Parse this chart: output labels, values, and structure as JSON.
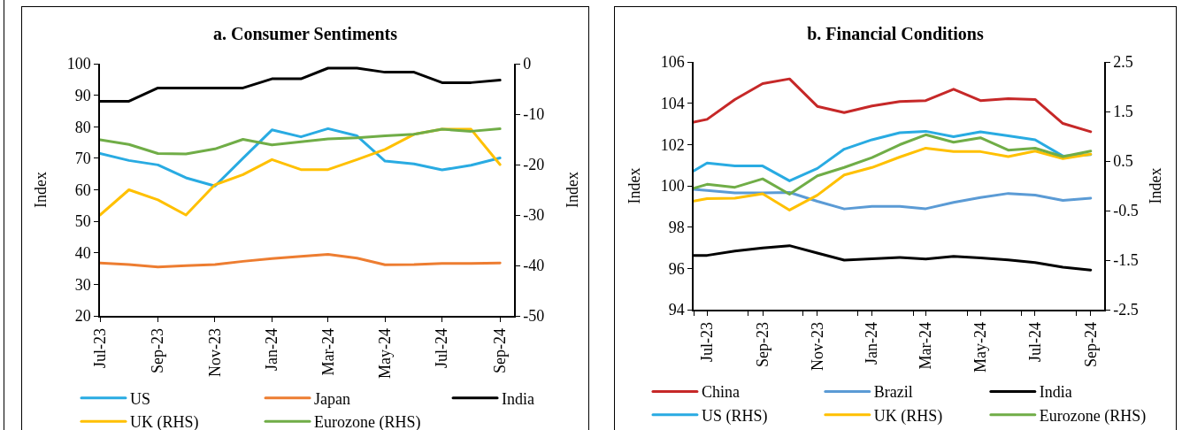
{
  "chart_data": [
    {
      "type": "line",
      "title": "a. Consumer Sentiments",
      "ylabel": "Index",
      "y2label": "Index",
      "x": [
        "2023-07",
        "2023-08",
        "2023-09",
        "2023-10",
        "2023-11",
        "2023-12",
        "2024-01",
        "2024-02",
        "2024-03",
        "2024-04",
        "2024-05",
        "2024-06",
        "2024-07",
        "2024-08",
        "2024-09"
      ],
      "series": [
        {
          "name": "US",
          "color": "#29abe2",
          "values": [
            71.5,
            69.3,
            67.9,
            63.8,
            61.2,
            70.0,
            79.0,
            76.8,
            79.4,
            77.1,
            69.1,
            68.2,
            66.3,
            67.8,
            70.1
          ]
        },
        {
          "name": "Japan",
          "color": "#ed7d31",
          "values": [
            36.8,
            36.3,
            35.5,
            35.9,
            36.3,
            37.3,
            38.2,
            38.9,
            39.5,
            38.3,
            36.2,
            36.3,
            36.6,
            36.6,
            36.8
          ]
        },
        {
          "name": "India",
          "color": "#000000",
          "values": [
            88.1,
            88.1,
            92.3,
            92.3,
            92.3,
            92.3,
            95.2,
            95.2,
            98.6,
            98.6,
            97.3,
            97.3,
            94.0,
            94.0,
            94.8
          ]
        },
        {
          "name": "UK (RHS)",
          "color": "#ffc000",
          "axis": "y2",
          "values": [
            -30,
            -25,
            -27,
            -30,
            -24,
            -22,
            -19,
            -21,
            -21,
            -19,
            -17,
            -14,
            -13,
            -13,
            -20
          ]
        },
        {
          "name": "Eurozone (RHS)",
          "color": "#70ad47",
          "axis": "y2",
          "values": [
            -15.1,
            -16.0,
            -17.8,
            -17.9,
            -16.9,
            -15.0,
            -16.1,
            -15.5,
            -14.9,
            -14.7,
            -14.3,
            -14.0,
            -13.0,
            -13.4,
            -12.9
          ]
        }
      ],
      "xlim": [
        "2023-07",
        "2024-09-16"
      ],
      "xticks": [
        {
          "value": "2023-07",
          "label": "Jul-23"
        },
        {
          "value": "2023-09",
          "label": "Sep-23"
        },
        {
          "value": "2023-11",
          "label": "Nov-23"
        },
        {
          "value": "2024-01",
          "label": "Jan-24"
        },
        {
          "value": "2024-03",
          "label": "Mar-24"
        },
        {
          "value": "2024-05",
          "label": "May-24"
        },
        {
          "value": "2024-07",
          "label": "Jul-24"
        },
        {
          "value": "2024-09",
          "label": "Sep-24"
        }
      ],
      "ylim": [
        20,
        100
      ],
      "yticks": [
        20,
        30,
        40,
        50,
        60,
        70,
        80,
        90,
        100
      ],
      "y2lim": [
        -50,
        0
      ],
      "y2ticks": [
        -50,
        -40,
        -30,
        -20,
        -10,
        0
      ],
      "legend": "bottom"
    },
    {
      "type": "line",
      "title": "b. Financial Conditions",
      "ylabel": "Index",
      "y2label": "Index",
      "x": [
        "2023-06-16",
        "2023-07",
        "2023-08",
        "2023-09",
        "2023-10",
        "2023-11",
        "2023-12",
        "2024-01",
        "2024-02",
        "2024-03",
        "2024-04",
        "2024-05",
        "2024-06",
        "2024-07",
        "2024-08",
        "2024-09"
      ],
      "series": [
        {
          "name": "China",
          "color": "#c62828",
          "values": [
            103.08,
            103.22,
            104.18,
            104.95,
            105.18,
            103.85,
            103.55,
            103.87,
            104.08,
            104.13,
            104.68,
            104.13,
            104.22,
            104.18,
            103.02,
            102.62
          ]
        },
        {
          "name": "Brazil",
          "color": "#5b9bd5",
          "values": [
            99.83,
            99.78,
            99.66,
            99.66,
            99.68,
            99.25,
            98.88,
            99.0,
            99.0,
            98.89,
            99.2,
            99.43,
            99.63,
            99.55,
            99.29,
            99.4
          ]
        },
        {
          "name": "India",
          "color": "#000000",
          "values": [
            96.63,
            96.63,
            96.84,
            96.99,
            97.1,
            96.74,
            96.4,
            96.46,
            96.53,
            96.45,
            96.58,
            96.51,
            96.41,
            96.28,
            96.06,
            95.92
          ]
        },
        {
          "name": "US (RHS)",
          "color": "#29abe2",
          "axis": "y2",
          "values": [
            0.3,
            0.46,
            0.4,
            0.4,
            0.1,
            0.35,
            0.74,
            0.93,
            1.07,
            1.1,
            0.99,
            1.09,
            1.01,
            0.93,
            0.6,
            0.63
          ]
        },
        {
          "name": "UK (RHS)",
          "color": "#ffc000",
          "axis": "y2",
          "values": [
            -0.31,
            -0.26,
            -0.25,
            -0.16,
            -0.49,
            -0.19,
            0.22,
            0.37,
            0.58,
            0.76,
            0.69,
            0.69,
            0.59,
            0.7,
            0.55,
            0.64
          ]
        },
        {
          "name": "Eurozone (RHS)",
          "color": "#70ad47",
          "axis": "y2",
          "values": [
            -0.05,
            0.03,
            -0.03,
            0.14,
            -0.17,
            0.2,
            0.37,
            0.57,
            0.83,
            1.03,
            0.88,
            0.97,
            0.72,
            0.76,
            0.59,
            0.7
          ]
        }
      ],
      "xlim": [
        "2023-06-16",
        "2024-09-16"
      ],
      "xticks": [
        {
          "value": "2023-06-16",
          "label": null
        },
        {
          "value": "2023-07",
          "label": "Jul-23"
        },
        {
          "value": "2023-08-16",
          "label": null
        },
        {
          "value": "2023-09",
          "label": "Sep-23"
        },
        {
          "value": "2023-10-16",
          "label": null
        },
        {
          "value": "2023-11",
          "label": "Nov-23"
        },
        {
          "value": "2023-12-16",
          "label": null
        },
        {
          "value": "2024-01",
          "label": "Jan-24"
        },
        {
          "value": "2024-02-16",
          "label": null
        },
        {
          "value": "2024-03",
          "label": "Mar-24"
        },
        {
          "value": "2024-04-16",
          "label": null
        },
        {
          "value": "2024-05",
          "label": "May-24"
        },
        {
          "value": "2024-06-16",
          "label": null
        },
        {
          "value": "2024-07",
          "label": "Jul-24"
        },
        {
          "value": "2024-08-16",
          "label": null
        },
        {
          "value": "2024-09",
          "label": "Sep-24"
        }
      ],
      "ylim": [
        94,
        106
      ],
      "yticks": [
        94,
        96,
        98,
        100,
        102,
        104,
        106
      ],
      "y2lim": [
        -2.5,
        2.5
      ],
      "y2ticks": [
        -2.5,
        -1.5,
        -0.5,
        0.5,
        1.5,
        2.5
      ],
      "legend": "bottom"
    }
  ]
}
